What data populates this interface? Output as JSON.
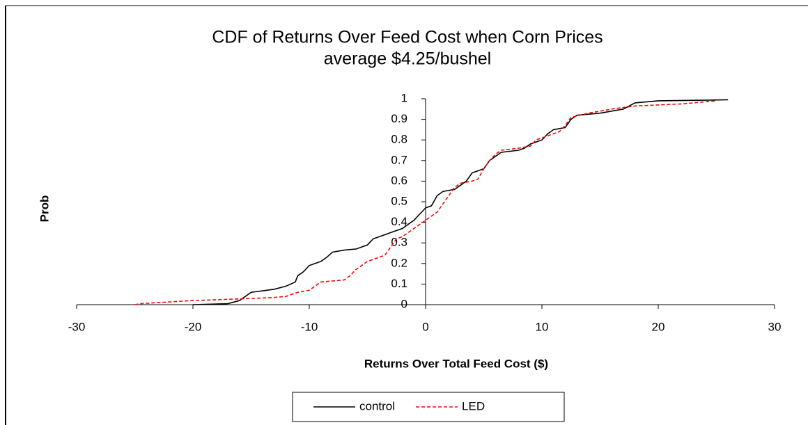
{
  "chart_data": {
    "type": "line",
    "title": "CDF of Returns Over Feed Cost when Corn Prices",
    "subtitle": "average $4.25/bushel",
    "x_label": "Returns Over Total Feed  Cost ($)",
    "y_label": "Prob",
    "xlim": [
      -30,
      30
    ],
    "xticks": [
      -30,
      -20,
      -10,
      0,
      10,
      20,
      30
    ],
    "ylim": [
      0,
      1
    ],
    "yticks": [
      0,
      0.1,
      0.2,
      0.3,
      0.4,
      0.5,
      0.6,
      0.7,
      0.8,
      0.9,
      1
    ],
    "legend": "bottom",
    "series": [
      {
        "name": "control",
        "color": "#000000",
        "style": "solid",
        "x": [
          -20,
          -17,
          -16,
          -15.5,
          -15,
          -13,
          -12,
          -11.2,
          -11,
          -10.5,
          -10,
          -9.5,
          -9,
          -8.5,
          -8,
          -7,
          -6,
          -5,
          -4.5,
          -4,
          -3.5,
          -3,
          -2,
          -1.5,
          -1,
          -0.5,
          0,
          0.5,
          1,
          1.5,
          2.5,
          3,
          3.5,
          4,
          5,
          5.5,
          6,
          6.5,
          8,
          8.5,
          9,
          10,
          10.5,
          11,
          12,
          12.5,
          13,
          15,
          17,
          18,
          20,
          26
        ],
        "values": [
          0,
          0.005,
          0.02,
          0.04,
          0.06,
          0.075,
          0.09,
          0.11,
          0.14,
          0.16,
          0.19,
          0.2,
          0.21,
          0.23,
          0.255,
          0.265,
          0.27,
          0.29,
          0.32,
          0.33,
          0.34,
          0.35,
          0.37,
          0.39,
          0.41,
          0.44,
          0.47,
          0.48,
          0.53,
          0.55,
          0.56,
          0.58,
          0.6,
          0.64,
          0.66,
          0.7,
          0.72,
          0.74,
          0.75,
          0.76,
          0.78,
          0.8,
          0.83,
          0.85,
          0.86,
          0.9,
          0.92,
          0.93,
          0.95,
          0.98,
          0.99,
          0.995
        ]
      },
      {
        "name": "LED",
        "color": "#ff0000",
        "style": "dashed",
        "x": [
          -25,
          -24.5,
          -20,
          -15,
          -13,
          -12,
          -11,
          -10,
          -9.5,
          -9,
          -8,
          -7,
          -6.5,
          -6,
          -5.5,
          -5,
          -4.5,
          -4,
          -3.5,
          -3,
          -2.5,
          -2,
          -1.5,
          -1,
          -0.5,
          0,
          0.5,
          1,
          1.5,
          2,
          2.5,
          3,
          4,
          4.5,
          5,
          5.5,
          6,
          6.5,
          8,
          9,
          9.5,
          10.5,
          11.5,
          12,
          12.5,
          14,
          16,
          18,
          22,
          25
        ],
        "values": [
          0,
          0.005,
          0.02,
          0.03,
          0.035,
          0.04,
          0.06,
          0.07,
          0.09,
          0.11,
          0.115,
          0.12,
          0.14,
          0.17,
          0.19,
          0.21,
          0.22,
          0.23,
          0.24,
          0.28,
          0.32,
          0.33,
          0.35,
          0.37,
          0.39,
          0.41,
          0.43,
          0.45,
          0.49,
          0.53,
          0.57,
          0.59,
          0.6,
          0.61,
          0.66,
          0.7,
          0.73,
          0.75,
          0.76,
          0.77,
          0.8,
          0.82,
          0.84,
          0.87,
          0.91,
          0.93,
          0.95,
          0.965,
          0.975,
          0.99
        ]
      }
    ]
  }
}
